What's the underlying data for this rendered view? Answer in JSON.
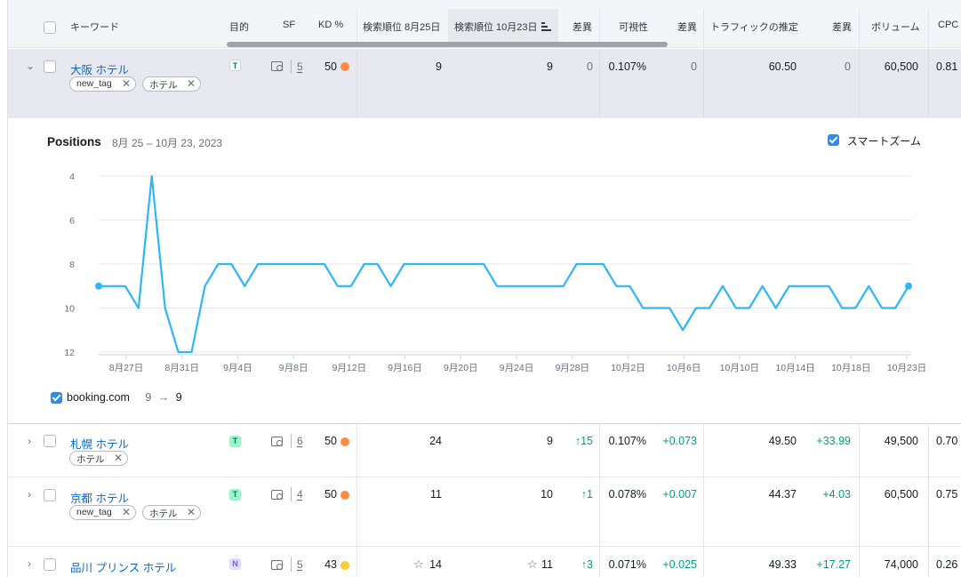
{
  "header": {
    "keyword": "キーワード",
    "intent": "目的",
    "sf": "SF",
    "kd": "KD %",
    "pos_aug": "検索順位 8月25日",
    "pos_oct": "検索順位 10月23日",
    "diff1": "差異",
    "visibility": "可視性",
    "diff2": "差異",
    "traffic": "トラフィックの推定",
    "diff3": "差異",
    "volume": "ボリューム",
    "cpc": "CPC"
  },
  "expanded_row": {
    "keyword": "大阪 ホテル",
    "tags": [
      "new_tag",
      "ホテル"
    ],
    "intent": "T",
    "sf": "5",
    "kd": "50",
    "pos_aug": "9",
    "pos_oct": "9",
    "diff1": "0",
    "visibility": "0.107%",
    "diff2": "0",
    "traffic": "60.50",
    "diff3": "0",
    "volume": "60,500",
    "cpc": "0.81"
  },
  "chart_panel": {
    "title": "Positions",
    "date_range": "8月 25 – 10月 23, 2023",
    "smart_zoom_label": "スマートズーム",
    "legend_domain": "booking.com",
    "legend_from": "9",
    "legend_arrow": "→",
    "legend_to": "9"
  },
  "chart_data": {
    "type": "line",
    "series": [
      {
        "name": "booking.com",
        "values": [
          9,
          9,
          9,
          10,
          4,
          10,
          12,
          12,
          9,
          8,
          8,
          9,
          8,
          8,
          8,
          8,
          8,
          8,
          9,
          9,
          8,
          8,
          9,
          8,
          8,
          8,
          8,
          8,
          8,
          8,
          9,
          9,
          9,
          9,
          9,
          9,
          8,
          8,
          8,
          9,
          9,
          10,
          10,
          10,
          11,
          10,
          10,
          9,
          10,
          10,
          9,
          10,
          9,
          9,
          9,
          9,
          10,
          10,
          9,
          10,
          10,
          9
        ]
      }
    ],
    "x_tick_labels": [
      "8月27日",
      "8月31日",
      "9月4日",
      "9月8日",
      "9月12日",
      "9月16日",
      "9月20日",
      "9月24日",
      "9月28日",
      "10月2日",
      "10月6日",
      "10月10日",
      "10月14日",
      "10月18日",
      "10月23日"
    ],
    "y_tick_labels": [
      "4",
      "6",
      "8",
      "10",
      "12"
    ],
    "ylim": [
      4,
      12
    ],
    "y_inverted": true,
    "color": "#2fb5f9",
    "grid": true
  },
  "rows": [
    {
      "keyword": "札幌 ホテル",
      "tags": [
        "ホテル"
      ],
      "intent": "T",
      "sf": "6",
      "kd": "50",
      "kd_color": "#ff8c43",
      "pos_aug": "24",
      "pos_oct": "9",
      "diff1": "15",
      "visibility": "0.107%",
      "diff2": "+0.073",
      "traffic": "49.50",
      "diff3": "+33.99",
      "volume": "49,500",
      "cpc": "0.70"
    },
    {
      "keyword": "京都 ホテル",
      "tags": [
        "new_tag",
        "ホテル"
      ],
      "intent": "T",
      "sf": "4",
      "kd": "50",
      "kd_color": "#ff8c43",
      "pos_aug": "11",
      "pos_oct": "10",
      "diff1": "1",
      "visibility": "0.078%",
      "diff2": "+0.007",
      "traffic": "44.37",
      "diff3": "+4.03",
      "volume": "60,500",
      "cpc": "0.75"
    },
    {
      "keyword": "品川 プリンス ホテル",
      "tags": [],
      "intent": "N",
      "sf": "5",
      "kd": "43",
      "kd_color": "#ffcc33",
      "pos_aug": "14",
      "pos_oct": "11",
      "diff1": "3",
      "visibility": "0.071%",
      "diff2": "+0.025",
      "traffic": "49.33",
      "diff3": "+17.27",
      "volume": "74,000",
      "cpc": "0.26"
    }
  ],
  "colors": {
    "accent": "#2b8dee",
    "link": "#0a67c7",
    "green": "#009f81",
    "kd_orange": "#ff8c43",
    "kd_yellow": "#ffcc33"
  }
}
